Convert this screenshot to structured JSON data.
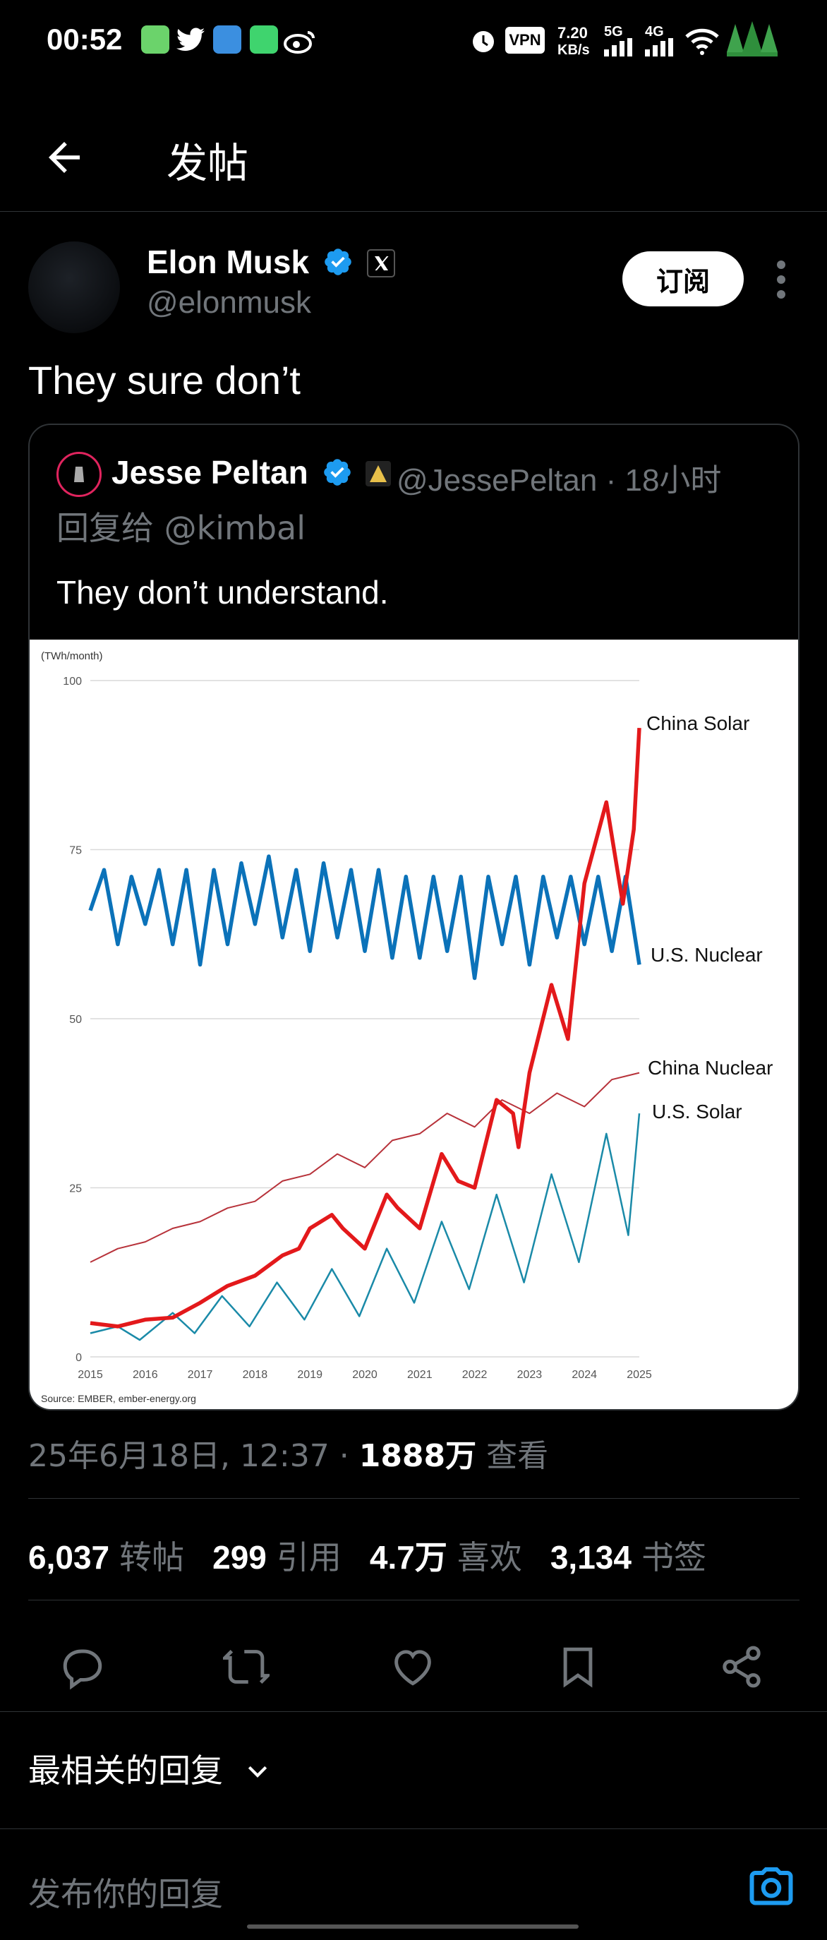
{
  "status_bar": {
    "time": "00:52",
    "vpn": "VPN",
    "speed_value": "7.20",
    "speed_unit": "KB/s",
    "net_5g": "5G",
    "net_4g": "4G"
  },
  "header": {
    "title": "发帖"
  },
  "tweet": {
    "author_name": "Elon Musk",
    "author_handle": "@elonmusk",
    "subscribe_label": "订阅",
    "text": "They sure don’t",
    "quote": {
      "author_name": "Jesse Peltan",
      "handle_time": "@JessePeltan · 18小时",
      "reply_to": "回复给 @kimbal",
      "text": "They don’t understand."
    },
    "meta": {
      "timestamp": "25年6月18日, 12:37 · ",
      "views_count": "1888万",
      "views_label": " 查看"
    },
    "stats": {
      "reposts_count": "6,037",
      "reposts_label": "转帖",
      "quotes_count": "299",
      "quotes_label": "引用",
      "likes_count": "4.7万",
      "likes_label": "喜欢",
      "bookmarks_count": "3,134",
      "bookmarks_label": "书签"
    }
  },
  "replies": {
    "sort_label": "最相关的回复",
    "reply_placeholder": "发布你的回复"
  },
  "icons": [
    "back-arrow-icon",
    "verified-badge-icon",
    "x-logo-icon",
    "more-vertical-icon",
    "reply-icon",
    "repost-icon",
    "like-icon",
    "bookmark-icon",
    "share-icon",
    "chevron-down-icon",
    "camera-icon"
  ],
  "colors": {
    "verified": "#1d9bf0",
    "china_solar": "#e3191b",
    "us_nuclear": "#0b72b9",
    "china_nuclear": "#b7323a",
    "us_solar": "#1a8aa8"
  },
  "chart_data": {
    "type": "line",
    "unit_label": "(TWh/month)",
    "source": "Source: EMBER, ember-energy.org",
    "ylim": [
      0,
      100
    ],
    "yticks": [
      "0",
      "25",
      "50",
      "75",
      "100"
    ],
    "xticks": [
      "2015",
      "2016",
      "2017",
      "2018",
      "2019",
      "2020",
      "2021",
      "2022",
      "2023",
      "2024",
      "2025"
    ],
    "grid": true,
    "series": [
      {
        "name": "China Solar",
        "color": "#e3191b",
        "points": [
          [
            2015.0,
            5
          ],
          [
            2015.5,
            4.5
          ],
          [
            2016.0,
            5.5
          ],
          [
            2016.5,
            5.8
          ],
          [
            2017.0,
            8
          ],
          [
            2017.5,
            10.5
          ],
          [
            2018.0,
            12
          ],
          [
            2018.5,
            15
          ],
          [
            2018.8,
            16
          ],
          [
            2019.0,
            19
          ],
          [
            2019.4,
            21
          ],
          [
            2019.6,
            19
          ],
          [
            2020.0,
            16
          ],
          [
            2020.4,
            24
          ],
          [
            2020.6,
            22
          ],
          [
            2021.0,
            19
          ],
          [
            2021.4,
            30
          ],
          [
            2021.7,
            26
          ],
          [
            2022.0,
            25
          ],
          [
            2022.4,
            38
          ],
          [
            2022.7,
            36
          ],
          [
            2022.8,
            31
          ],
          [
            2023.0,
            42
          ],
          [
            2023.4,
            55
          ],
          [
            2023.7,
            47
          ],
          [
            2024.0,
            70
          ],
          [
            2024.4,
            82
          ],
          [
            2024.7,
            67
          ],
          [
            2024.9,
            78
          ],
          [
            2025.0,
            93
          ]
        ]
      },
      {
        "name": "U.S. Nuclear",
        "color": "#0b72b9",
        "points": [
          [
            2015.0,
            66
          ],
          [
            2015.25,
            72
          ],
          [
            2015.5,
            61
          ],
          [
            2015.75,
            71
          ],
          [
            2016.0,
            64
          ],
          [
            2016.25,
            72
          ],
          [
            2016.5,
            61
          ],
          [
            2016.75,
            72
          ],
          [
            2017.0,
            58
          ],
          [
            2017.25,
            72
          ],
          [
            2017.5,
            61
          ],
          [
            2017.75,
            73
          ],
          [
            2018.0,
            64
          ],
          [
            2018.25,
            74
          ],
          [
            2018.5,
            62
          ],
          [
            2018.75,
            72
          ],
          [
            2019.0,
            60
          ],
          [
            2019.25,
            73
          ],
          [
            2019.5,
            62
          ],
          [
            2019.75,
            72
          ],
          [
            2020.0,
            60
          ],
          [
            2020.25,
            72
          ],
          [
            2020.5,
            59
          ],
          [
            2020.75,
            71
          ],
          [
            2021.0,
            59
          ],
          [
            2021.25,
            71
          ],
          [
            2021.5,
            60
          ],
          [
            2021.75,
            71
          ],
          [
            2022.0,
            56
          ],
          [
            2022.25,
            71
          ],
          [
            2022.5,
            61
          ],
          [
            2022.75,
            71
          ],
          [
            2023.0,
            58
          ],
          [
            2023.25,
            71
          ],
          [
            2023.5,
            62
          ],
          [
            2023.75,
            71
          ],
          [
            2024.0,
            61
          ],
          [
            2024.25,
            71
          ],
          [
            2024.5,
            60
          ],
          [
            2024.75,
            71
          ],
          [
            2025.0,
            58
          ]
        ]
      },
      {
        "name": "China Nuclear",
        "color": "#b7323a",
        "points": [
          [
            2015.0,
            14
          ],
          [
            2015.5,
            16
          ],
          [
            2016.0,
            17
          ],
          [
            2016.5,
            19
          ],
          [
            2017.0,
            20
          ],
          [
            2017.5,
            22
          ],
          [
            2018.0,
            23
          ],
          [
            2018.5,
            26
          ],
          [
            2019.0,
            27
          ],
          [
            2019.5,
            30
          ],
          [
            2020.0,
            28
          ],
          [
            2020.5,
            32
          ],
          [
            2021.0,
            33
          ],
          [
            2021.5,
            36
          ],
          [
            2022.0,
            34
          ],
          [
            2022.5,
            38
          ],
          [
            2023.0,
            36
          ],
          [
            2023.5,
            39
          ],
          [
            2024.0,
            37
          ],
          [
            2024.5,
            41
          ],
          [
            2025.0,
            42
          ]
        ]
      },
      {
        "name": "U.S. Solar",
        "color": "#1a8aa8",
        "points": [
          [
            2015.0,
            3.5
          ],
          [
            2015.5,
            4.5
          ],
          [
            2015.9,
            2.5
          ],
          [
            2016.5,
            6.5
          ],
          [
            2016.9,
            3.5
          ],
          [
            2017.4,
            9
          ],
          [
            2017.9,
            4.5
          ],
          [
            2018.4,
            11
          ],
          [
            2018.9,
            5.5
          ],
          [
            2019.4,
            13
          ],
          [
            2019.9,
            6
          ],
          [
            2020.4,
            16
          ],
          [
            2020.9,
            8
          ],
          [
            2021.4,
            20
          ],
          [
            2021.9,
            10
          ],
          [
            2022.4,
            24
          ],
          [
            2022.9,
            11
          ],
          [
            2023.4,
            27
          ],
          [
            2023.9,
            14
          ],
          [
            2024.4,
            33
          ],
          [
            2024.8,
            18
          ],
          [
            2025.0,
            36
          ]
        ]
      }
    ]
  }
}
